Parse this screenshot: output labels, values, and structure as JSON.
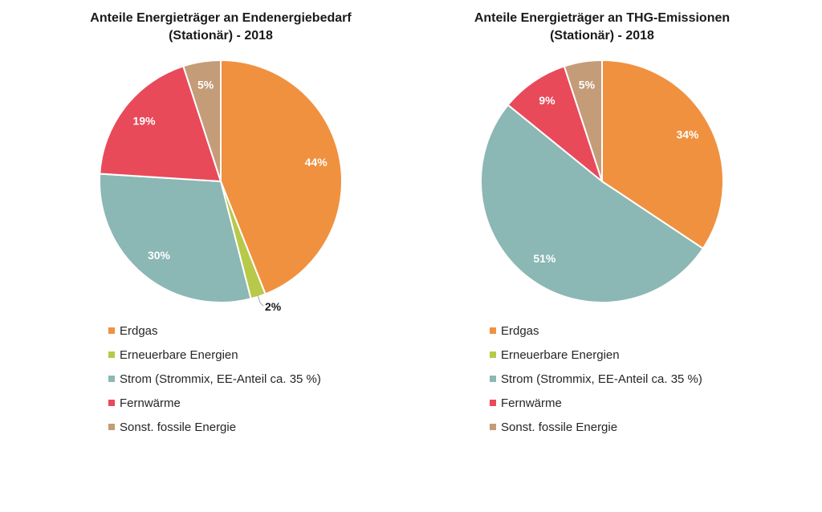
{
  "chart_data": [
    {
      "type": "pie",
      "title": "Anteile Energieträger an Endenergiebedarf (Stationär) - 2018",
      "title_lines": [
        "Anteile Energieträger an Endenergiebedarf",
        "(Stationär) - 2018"
      ],
      "categories": [
        "Erdgas",
        "Erneuerbare Energien",
        "Strom (Strommix, EE-Anteil ca. 35 %)",
        "Fernwärme",
        "Sonst. fossile Energie"
      ],
      "values": [
        44,
        2,
        30,
        19,
        5
      ],
      "labels": [
        "44%",
        "2%",
        "30%",
        "19%",
        "5%"
      ],
      "colors": [
        "#F0913F",
        "#B8C94A",
        "#8BB7B4",
        "#E84A5A",
        "#C49C78"
      ],
      "legend": "bottom"
    },
    {
      "type": "pie",
      "title": "Anteile Energieträger an THG-Emissionen (Stationär) - 2018",
      "title_lines": [
        "Anteile Energieträger an THG-Emissionen",
        "(Stationär) - 2018"
      ],
      "categories": [
        "Erdgas",
        "Erneuerbare Energien",
        "Strom (Strommix, EE-Anteil ca. 35 %)",
        "Fernwärme",
        "Sonst. fossile Energie"
      ],
      "values": [
        34,
        0,
        51,
        9,
        5
      ],
      "labels": [
        "34%",
        "",
        "51%",
        "9%",
        "5%"
      ],
      "colors": [
        "#F0913F",
        "#B8C94A",
        "#8BB7B4",
        "#E84A5A",
        "#C49C78"
      ],
      "legend": "bottom"
    }
  ]
}
